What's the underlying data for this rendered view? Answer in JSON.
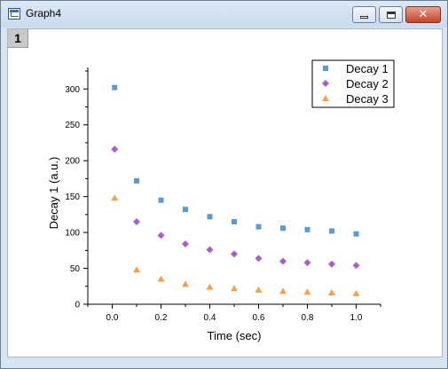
{
  "window": {
    "title": "Graph4",
    "layer_label": "1"
  },
  "controls": {
    "minimize": "minimize",
    "maximize": "maximize",
    "close": "✕"
  },
  "chart_data": {
    "type": "scatter",
    "xlabel": "Time (sec)",
    "ylabel": "Decay 1 (a.u.)",
    "xlim": [
      -0.1,
      1.1
    ],
    "ylim": [
      0,
      330
    ],
    "xticks": [
      0,
      0.2,
      0.4,
      0.6,
      0.8,
      1
    ],
    "xtick_labels": [
      "0.0",
      "0.2",
      "0.4",
      "0.6",
      "0.8",
      "1.0"
    ],
    "yticks": [
      0,
      50,
      100,
      150,
      200,
      250,
      300
    ],
    "ytick_labels": [
      "0",
      "50",
      "100",
      "150",
      "200",
      "250",
      "300"
    ],
    "grid": false,
    "legend": "top-right",
    "x": [
      0.01,
      0.1,
      0.2,
      0.3,
      0.4,
      0.5,
      0.6,
      0.7,
      0.8,
      0.9,
      1.0
    ],
    "series": [
      {
        "name": "Decay 1",
        "marker": "square",
        "color": "#5b9bd5",
        "values": [
          302,
          172,
          145,
          132,
          122,
          115,
          108,
          106,
          104,
          102,
          98
        ]
      },
      {
        "name": "Decay 2",
        "marker": "diamond",
        "color": "#a95fc4",
        "values": [
          216,
          115,
          96,
          84,
          76,
          70,
          64,
          60,
          58,
          56,
          54
        ]
      },
      {
        "name": "Decay 3",
        "marker": "triangle",
        "color": "#f5a14a",
        "values": [
          148,
          48,
          35,
          28,
          24,
          22,
          20,
          18,
          17,
          16,
          15
        ]
      }
    ]
  }
}
